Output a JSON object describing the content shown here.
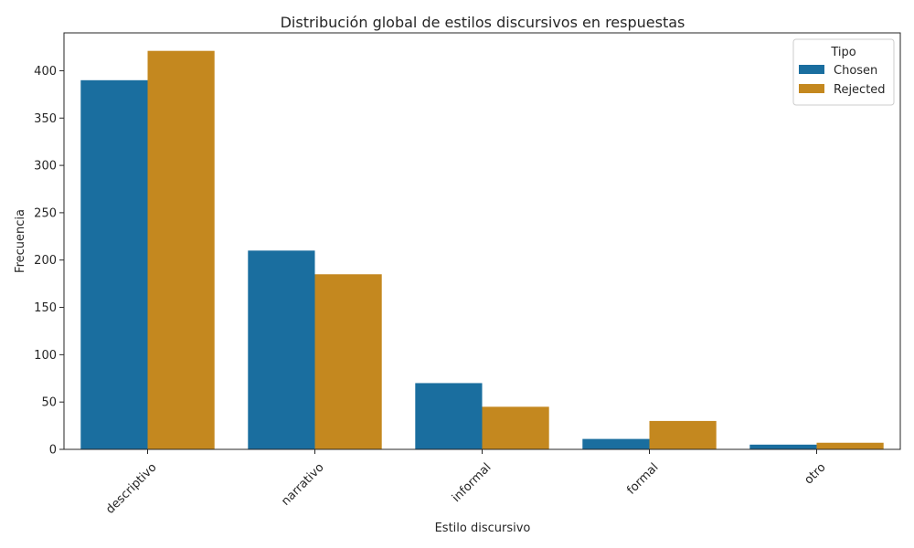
{
  "chart_data": {
    "type": "bar",
    "title": "Distribución global de estilos discursivos en respuestas",
    "xlabel": "Estilo discursivo",
    "ylabel": "Frecuencia",
    "categories": [
      "descriptivo",
      "narrativo",
      "informal",
      "formal",
      "otro"
    ],
    "series": [
      {
        "name": "Chosen",
        "color": "#1a6e9f",
        "values": [
          390,
          210,
          70,
          11,
          5
        ]
      },
      {
        "name": "Rejected",
        "color": "#c4881f",
        "values": [
          421,
          185,
          45,
          30,
          7
        ]
      }
    ],
    "ylim": [
      0,
      440
    ],
    "yticks": [
      0,
      50,
      100,
      150,
      200,
      250,
      300,
      350,
      400
    ],
    "legend": {
      "title": "Tipo",
      "position": "top-right"
    },
    "grid": false
  }
}
